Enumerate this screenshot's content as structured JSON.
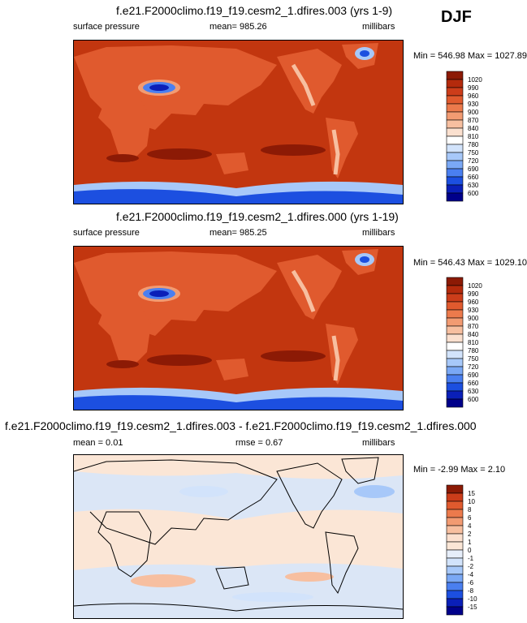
{
  "season": "DJF",
  "units": "millibars",
  "colors": {
    "sp_scale": [
      "#00008a",
      "#0a1fb8",
      "#1c4fe0",
      "#4a7ff0",
      "#7aa8f5",
      "#a7c8f9",
      "#d2e3fb",
      "#ffffff",
      "#fbe0cf",
      "#f7bfa0",
      "#f29b72",
      "#ec7a4c",
      "#e05a2e",
      "#cc3d1a",
      "#b42a0c",
      "#8c1a05"
    ],
    "diff_scale": [
      "#00008a",
      "#0a1fb8",
      "#1c4fe0",
      "#4a7ff0",
      "#7aa8f5",
      "#a7c8f9",
      "#d2e3fb",
      "#e6eefa",
      "#fbe6d6",
      "#fbe0cf",
      "#f7bfa0",
      "#f29b72",
      "#ec7a4c",
      "#e05a2e",
      "#cc3d1a",
      "#8c1a05"
    ],
    "ocean": "#c2360f",
    "land_high": "#e05a2e",
    "diff_bg": "#dbe6f6",
    "diff_pos": "#fbe6d6"
  },
  "chart_data": [
    {
      "type": "heatmap",
      "title": "f.e21.F2000climo.f19_f19.cesm2_1.dfires.003 (yrs 1-9)",
      "variable": "surface pressure",
      "mean_label": "mean= 985.26",
      "units": "millibars",
      "minmax": "Min = 546.98 Max = 1027.89",
      "colorbar_levels": [
        "1020",
        "990",
        "960",
        "930",
        "900",
        "870",
        "840",
        "810",
        "780",
        "750",
        "720",
        "690",
        "660",
        "630",
        "600"
      ]
    },
    {
      "type": "heatmap",
      "title": "f.e21.F2000climo.f19_f19.cesm2_1.dfires.000 (yrs 1-19)",
      "variable": "surface pressure",
      "mean_label": "mean= 985.25",
      "units": "millibars",
      "minmax": "Min = 546.43 Max = 1029.10",
      "colorbar_levels": [
        "1020",
        "990",
        "960",
        "930",
        "900",
        "870",
        "840",
        "810",
        "780",
        "750",
        "720",
        "690",
        "660",
        "630",
        "600"
      ]
    },
    {
      "type": "heatmap",
      "title": "f.e21.F2000climo.f19_f19.cesm2_1.dfires.003 - f.e21.F2000climo.f19_f19.cesm2_1.dfires.000",
      "mean_label": "mean =  0.01",
      "rmse_label": "rmse =  0.67",
      "units": "millibars",
      "minmax": "Min =  -2.99 Max =  2.10",
      "colorbar_levels": [
        "15",
        "10",
        "8",
        "6",
        "4",
        "2",
        "1",
        "0",
        "-1",
        "-2",
        "-4",
        "-6",
        "-8",
        "-10",
        "-15"
      ]
    }
  ]
}
